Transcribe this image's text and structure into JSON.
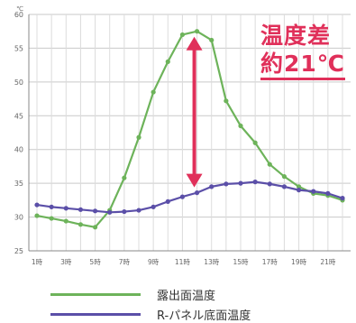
{
  "chart_data": {
    "type": "line",
    "unit_label": "℃",
    "categories": [
      "1時",
      "2時",
      "3時",
      "4時",
      "5時",
      "6時",
      "7時",
      "8時",
      "9時",
      "10時",
      "11時",
      "12時",
      "13時",
      "14時",
      "15時",
      "16時",
      "17時",
      "18時",
      "19時",
      "20時",
      "21時",
      "22時"
    ],
    "tick_labels": [
      "1時",
      "3時",
      "5時",
      "7時",
      "9時",
      "11時",
      "13時",
      "15時",
      "17時",
      "19時",
      "21時"
    ],
    "ylim": [
      25,
      60
    ],
    "yticks": [
      25,
      30,
      35,
      40,
      45,
      50,
      55,
      60
    ],
    "grid": true,
    "series": [
      {
        "name": "露出面温度",
        "color": "#6db35a",
        "values": [
          30.2,
          29.8,
          29.4,
          28.9,
          28.5,
          31.0,
          35.8,
          41.8,
          48.5,
          53.0,
          57.0,
          57.5,
          56.2,
          47.2,
          43.5,
          41.0,
          37.8,
          36.0,
          34.5,
          33.5,
          33.2,
          32.5
        ]
      },
      {
        "name": "R-パネル底面温度",
        "color": "#5b4fa8",
        "values": [
          31.8,
          31.5,
          31.3,
          31.1,
          30.9,
          30.7,
          30.8,
          31.0,
          31.5,
          32.3,
          33.0,
          33.6,
          34.5,
          34.9,
          35.0,
          35.2,
          34.9,
          34.5,
          34.0,
          33.8,
          33.5,
          32.8
        ]
      }
    ],
    "annotation": {
      "line1": "温度差",
      "line2": "約21℃",
      "arrow_at": "12時",
      "arrow_from": 57.5,
      "arrow_to": 33.6,
      "color": "#e0305a"
    }
  }
}
